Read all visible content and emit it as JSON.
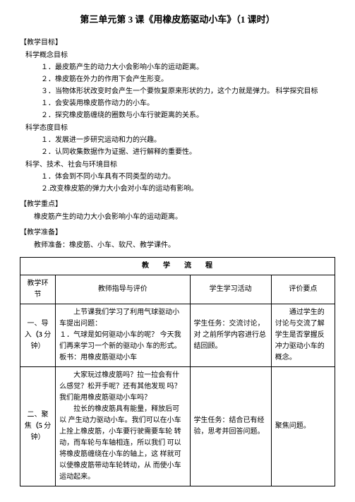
{
  "title": "第三单元第 3 课《用橡皮筋驱动小车》（1 课时）",
  "sections": {
    "goals_header": "【教学目标】",
    "concept_header": "科学概念目标",
    "concept_items": [
      "１．最皮筋产生的动力大小会影响小车的运动距离。",
      "２．橡皮筋在外力的作用下会产生形变。",
      "３．当物体形状改变时会产生一个要恢复原来形状的力，这个力就是弹力。 科学探究目标",
      "１．会安装用橡皮筋作动力的小车。",
      "２．探究橡皮筋缠绕的圈数与小车行驶距离的关系。"
    ],
    "attitude_header": "科学态度目标",
    "attitude_items": [
      "１．发展进一步研究运动和力的兴趣。",
      "２．认同收集数据作为证据、进行解释的重要性。"
    ],
    "tech_header": "科学、技术、社会与环境目标",
    "tech_items": [
      "１．体会到不同小车具有不同类型的动力。",
      "２.改变橡皮筋的弹力大小会对小车的运动有影响。"
    ],
    "key_header": "【教学重点】",
    "key_content": "橡皮筋产生的动力大小会影响小车的运动距离。",
    "prep_header": "【教学准备】",
    "prep_content": "教师准备：橡皮筋、小车、软尺、教学课件。"
  },
  "table": {
    "main_header": "教学流程",
    "col_headers": [
      "教学环节",
      "教师指导与评价",
      "学生学习活动",
      "评价要点"
    ],
    "rows": [
      {
        "phase_pre": "一、导入",
        "phase_bold": "（3",
        "phase_post": " 分钟）",
        "teacher": "　　上节课我们学习了利用气球驱动小 车提出问题：\n１．气球是如何驱动小车的呢？ 今天我们再来学习一个新的驱动小 车的形式。板书：用橡皮筋驱动小车",
        "student": "学生任务：交流讨论，对 之前所学内容进行总结回顾。",
        "eval": "　　通过学生的讨论与交流了解学生是否掌握反冲力驱动小车的概念。"
      },
      {
        "phase_pre": "二、聚焦",
        "phase_bold": "（5",
        "phase_post": " 分钟）",
        "teacher": "　　大家玩过橡皮筋吗？拉一拉会有什 么感觉？松开手呢？还有其他发现 吗？\n我们能用橡皮筋驱动小车吗？\n　　拉长的橡皮筋具有能量，释放后可以 产生动力驱动小车。我们可以在小车 上拴上橡皮筋，小车要行驶需要车轮 转动，而车轮与车轴相连，所以我们 可以将橡皮筋缠绕在小车的轴上，这 样就可以使橡皮筋带动车轮转动，从 而使小车运动起来。",
        "student": "学生任务：结合已有经 验，思考并回答问题。",
        "eval": "聚焦问题。"
      }
    ]
  }
}
